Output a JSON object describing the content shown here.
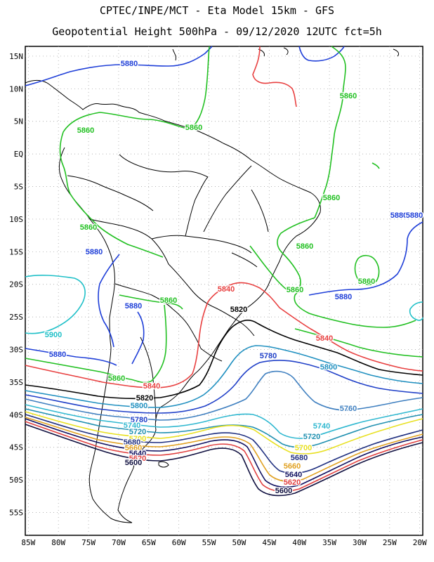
{
  "header": {
    "title": "CPTEC/INPE/MCT -  Eta Model 15km - GFS",
    "subtitle": "Geopotential Height 500hPa - 09/12/2020 12UTC fct=5h"
  },
  "map": {
    "lon_range": [
      -85.5,
      -19.5
    ],
    "lat_range": [
      -58.5,
      16.5
    ],
    "lat_labels": [
      "15N",
      "10N",
      "5N",
      "EQ",
      "5S",
      "10S",
      "15S",
      "20S",
      "25S",
      "30S",
      "35S",
      "40S",
      "45S",
      "50S",
      "55S"
    ],
    "lon_labels": [
      "85W",
      "80W",
      "75W",
      "70W",
      "65W",
      "60W",
      "55W",
      "50W",
      "45W",
      "40W",
      "35W",
      "30W",
      "25W",
      "20W"
    ],
    "grid": "dotted"
  },
  "contours": [
    {
      "level": "5880",
      "color": "#1f3fd8",
      "labels": [
        {
          "text": "5880"
        },
        {
          "text": "5880"
        },
        {
          "text": "5880"
        },
        {
          "text": "5880"
        },
        {
          "text": "5880"
        },
        {
          "text": "5880"
        },
        {
          "text": "5880"
        }
      ]
    },
    {
      "level": "5860",
      "color": "#22c022",
      "labels": [
        {
          "text": "5860"
        },
        {
          "text": "5860"
        },
        {
          "text": "5860"
        },
        {
          "text": "5860"
        },
        {
          "text": "5860"
        },
        {
          "text": "5860"
        },
        {
          "text": "5860"
        },
        {
          "text": "5860"
        },
        {
          "text": "5860"
        },
        {
          "text": "5860"
        }
      ]
    },
    {
      "level": "5900",
      "color": "#20c0c8",
      "labels": [
        {
          "text": "5900"
        }
      ]
    },
    {
      "level": "5840",
      "color": "#e84040",
      "labels": [
        {
          "text": "5840"
        },
        {
          "text": "5840"
        },
        {
          "text": "5840"
        }
      ]
    },
    {
      "level": "5820",
      "color": "#000000",
      "labels": [
        {
          "text": "5820"
        },
        {
          "text": "5820"
        }
      ]
    },
    {
      "level": "5800",
      "color": "#2090c0",
      "labels": [
        {
          "text": "5800"
        },
        {
          "text": "5800"
        }
      ]
    },
    {
      "level": "5780",
      "color": "#2040c8",
      "labels": [
        {
          "text": "5780"
        },
        {
          "text": "5780"
        }
      ]
    },
    {
      "level": "5760",
      "color": "#4080c0",
      "labels": [
        {
          "text": "5760"
        }
      ]
    },
    {
      "level": "5740",
      "color": "#30b8d0",
      "labels": [
        {
          "text": "5740"
        },
        {
          "text": "5740"
        }
      ]
    },
    {
      "level": "5720",
      "color": "#2090b0",
      "labels": [
        {
          "text": "5720"
        },
        {
          "text": "5720"
        }
      ]
    },
    {
      "level": "5700",
      "color": "#e8e020",
      "labels": [
        {
          "text": "5700"
        },
        {
          "text": "5700"
        }
      ]
    },
    {
      "level": "5680",
      "color": "#203080",
      "labels": [
        {
          "text": "5680"
        },
        {
          "text": "5680"
        }
      ]
    },
    {
      "level": "5660",
      "color": "#e0a020",
      "labels": [
        {
          "text": "5660"
        },
        {
          "text": "5660"
        }
      ]
    },
    {
      "level": "5640",
      "color": "#101060",
      "labels": [
        {
          "text": "5640"
        },
        {
          "text": "5640"
        }
      ]
    },
    {
      "level": "5620",
      "color": "#e04040",
      "labels": [
        {
          "text": "5620"
        },
        {
          "text": "5620"
        }
      ]
    },
    {
      "level": "5600",
      "color": "#101040",
      "labels": [
        {
          "text": "5600"
        },
        {
          "text": "5600"
        }
      ]
    }
  ]
}
